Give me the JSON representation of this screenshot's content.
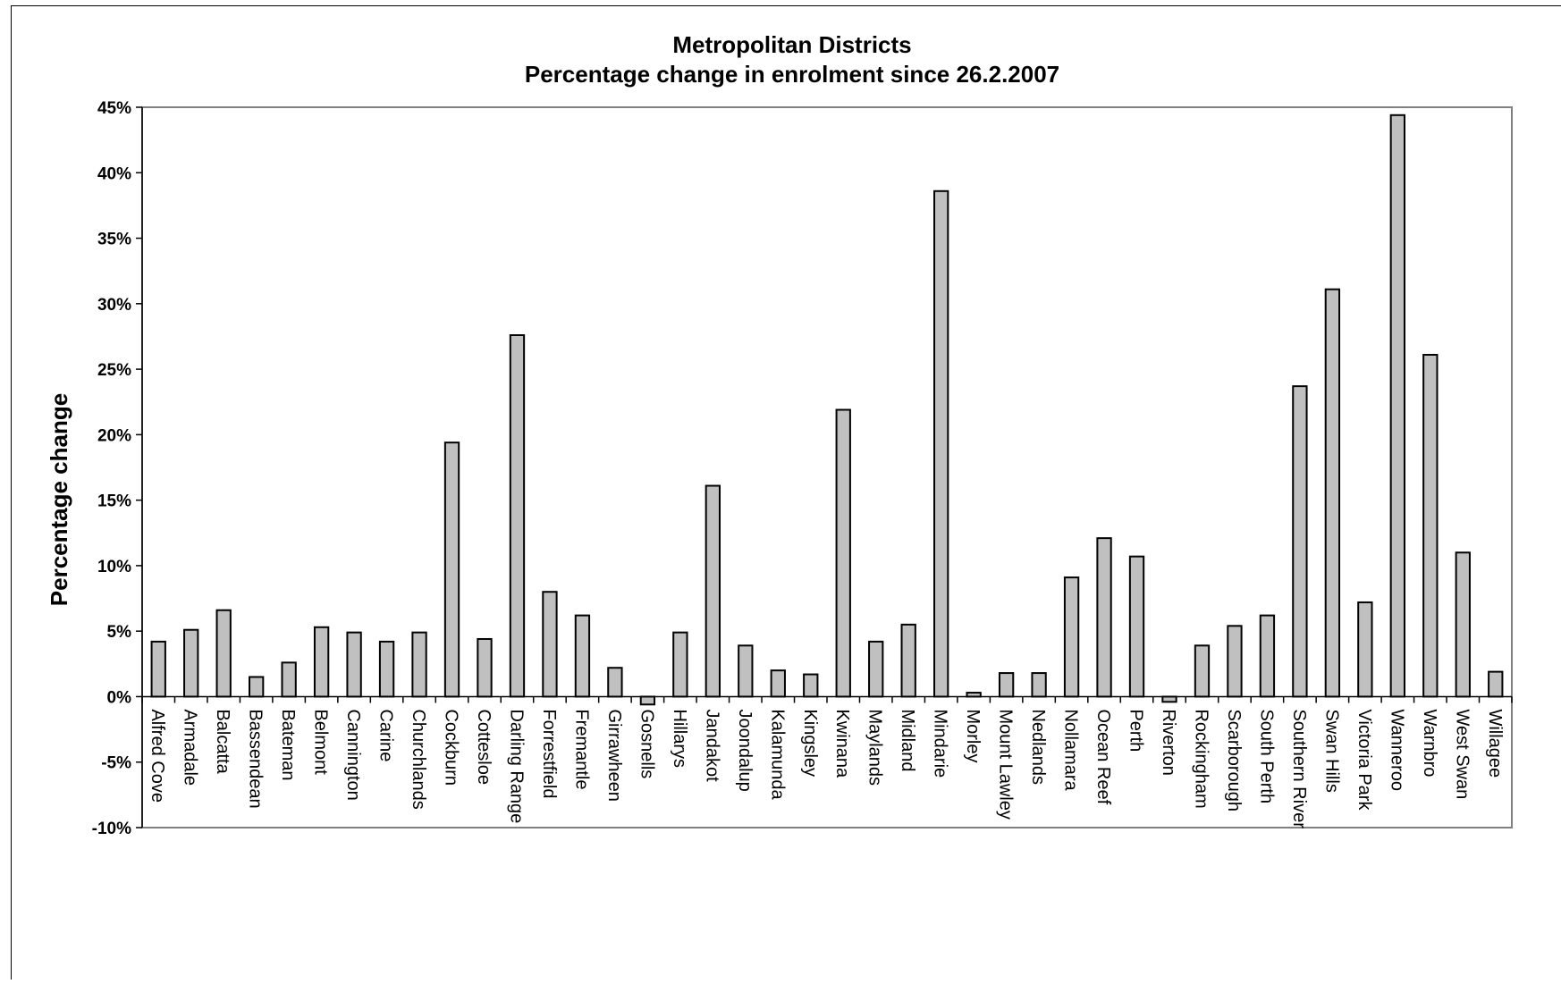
{
  "chart_data": {
    "type": "bar",
    "title": [
      "Metropolitan Districts",
      "Percentage change in enrolment since 26.2.2007"
    ],
    "xlabel": "",
    "ylabel": "Percentage change",
    "ylim": [
      -10,
      45
    ],
    "yticks": [
      45,
      40,
      35,
      30,
      25,
      20,
      15,
      10,
      5,
      0,
      -5,
      -10
    ],
    "ytick_labels": [
      "45%",
      "40%",
      "35%",
      "30%",
      "25%",
      "20%",
      "15%",
      "10%",
      "5%",
      "0%",
      "-5%",
      "-10%"
    ],
    "grid": false,
    "legend": "none",
    "bar_color": "#c0c0c0",
    "categories": [
      "Alfred Cove",
      "Armadale",
      "Balcatta",
      "Bassendean",
      "Bateman",
      "Belmont",
      "Cannington",
      "Carine",
      "Churchlands",
      "Cockburn",
      "Cottesloe",
      "Darling Range",
      "Forrestfield",
      "Fremantle",
      "Girrawheen",
      "Gosnells",
      "Hillarys",
      "Jandakot",
      "Joondalup",
      "Kalamunda",
      "Kingsley",
      "Kwinana",
      "Maylands",
      "Midland",
      "Mindarie",
      "Morley",
      "Mount Lawley",
      "Nedlands",
      "Nollamara",
      "Ocean Reef",
      "Perth",
      "Riverton",
      "Rockingham",
      "Scarborough",
      "South Perth",
      "Southern River",
      "Swan Hills",
      "Victoria Park",
      "Wanneroo",
      "Warnbro",
      "West Swan",
      "Willagee"
    ],
    "values": [
      4.2,
      5.1,
      6.6,
      1.5,
      2.6,
      5.3,
      4.9,
      4.2,
      4.9,
      19.4,
      4.4,
      27.6,
      8.0,
      6.2,
      2.2,
      -0.6,
      4.9,
      16.1,
      3.9,
      2.0,
      1.7,
      21.9,
      4.2,
      5.5,
      38.6,
      0.3,
      1.8,
      1.8,
      9.1,
      12.1,
      10.7,
      -0.4,
      3.9,
      5.4,
      6.2,
      23.7,
      31.1,
      7.2,
      44.4,
      26.1,
      11.0,
      1.9
    ]
  }
}
